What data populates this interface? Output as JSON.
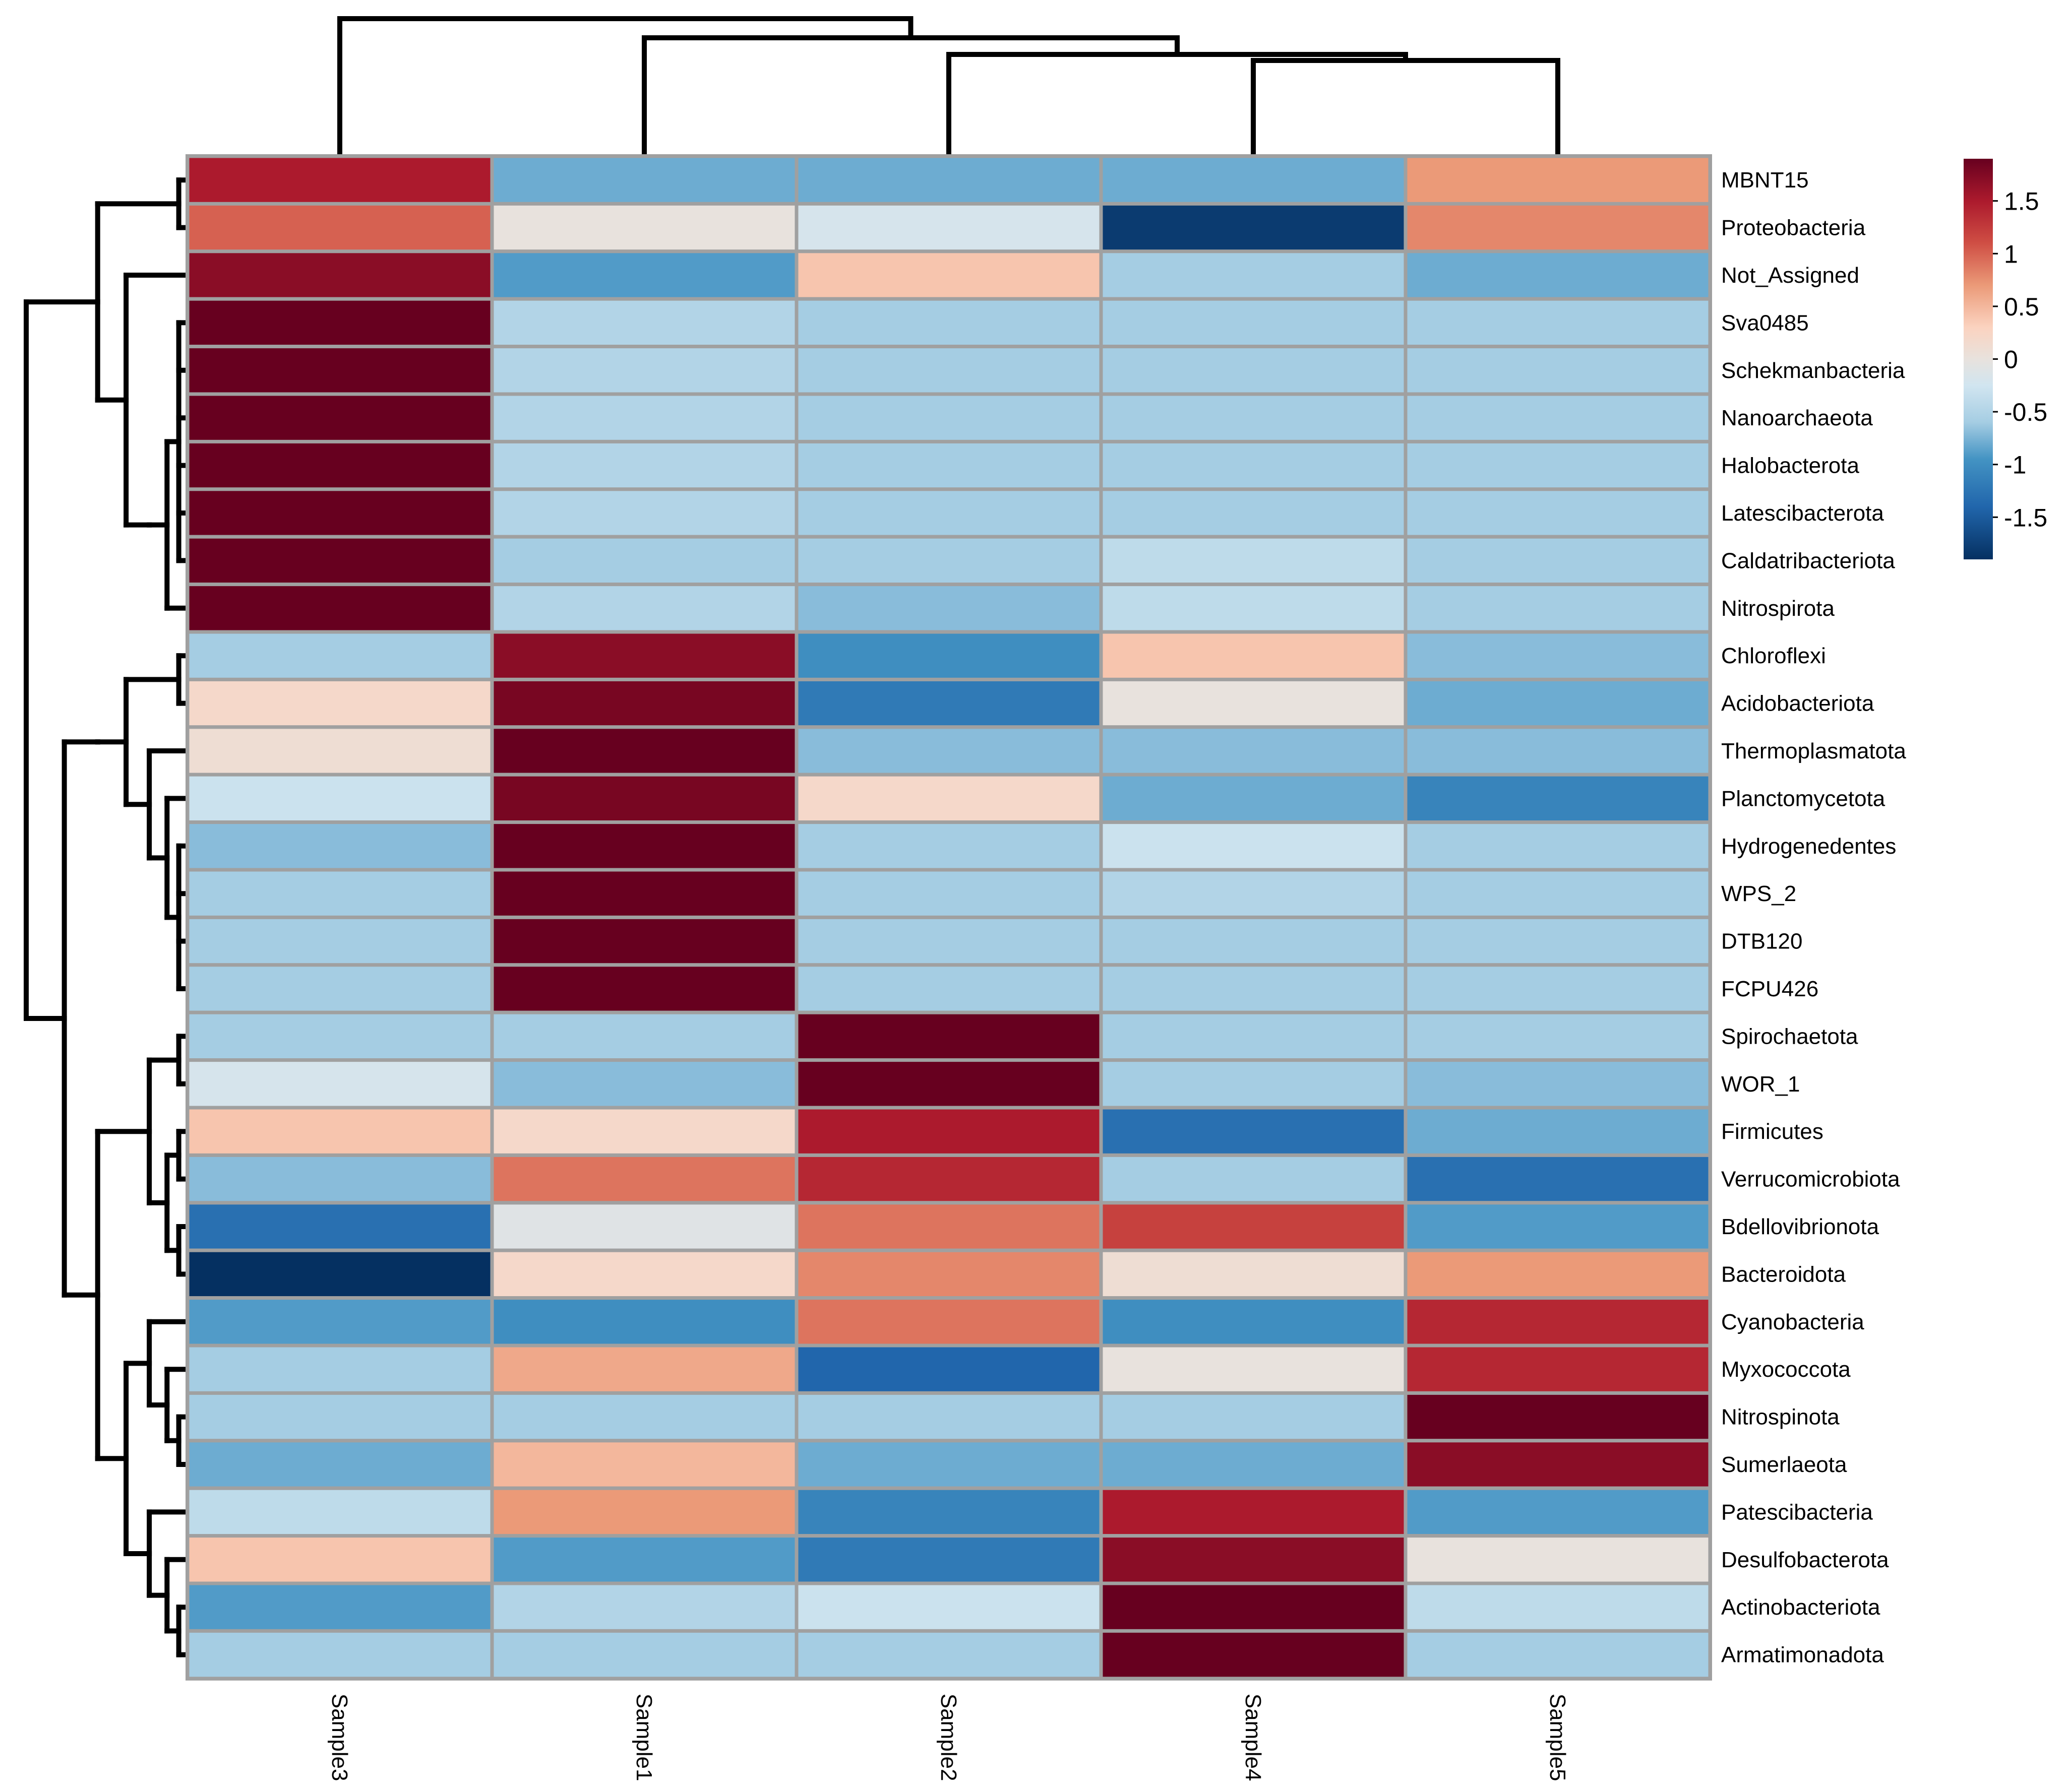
{
  "chart_data": {
    "type": "heatmap",
    "title": "",
    "columns": [
      "Sample3",
      "Sample1",
      "Sample2",
      "Sample4",
      "Sample5"
    ],
    "rows": [
      "MBNT15",
      "Proteobacteria",
      "Not_Assigned",
      "Sva0485",
      "Schekmanbacteria",
      "Nanoarchaeota",
      "Halobacterota",
      "Latescibacterota",
      "Caldatribacteriota",
      "Nitrospirota",
      "Chloroflexi",
      "Acidobacteriota",
      "Thermoplasmatota",
      "Planctomycetota",
      "Hydrogenedentes",
      "WPS_2",
      "DTB120",
      "FCPU426",
      "Spirochaetota",
      "WOR_1",
      "Firmicutes",
      "Verrucomicrobiota",
      "Bdellovibrionota",
      "Bacteroidota",
      "Cyanobacteria",
      "Myxococcota",
      "Nitrospinota",
      "Sumerlaeota",
      "Patescibacteria",
      "Desulfobacterota",
      "Actinobacteriota",
      "Armatimonadota"
    ],
    "values": [
      [
        1.5,
        -0.8,
        -0.8,
        -0.8,
        0.7
      ],
      [
        1.0,
        0.0,
        -0.2,
        -1.8,
        0.8
      ],
      [
        1.7,
        -0.9,
        0.4,
        -0.6,
        -0.8
      ],
      [
        1.9,
        -0.5,
        -0.6,
        -0.6,
        -0.6
      ],
      [
        1.9,
        -0.5,
        -0.6,
        -0.6,
        -0.6
      ],
      [
        1.9,
        -0.5,
        -0.6,
        -0.6,
        -0.6
      ],
      [
        1.9,
        -0.5,
        -0.6,
        -0.6,
        -0.6
      ],
      [
        1.9,
        -0.5,
        -0.6,
        -0.6,
        -0.6
      ],
      [
        1.9,
        -0.6,
        -0.6,
        -0.4,
        -0.6
      ],
      [
        1.9,
        -0.5,
        -0.7,
        -0.4,
        -0.6
      ],
      [
        -0.6,
        1.7,
        -1.0,
        0.4,
        -0.7
      ],
      [
        0.2,
        1.8,
        -1.2,
        0.0,
        -0.8
      ],
      [
        0.1,
        1.9,
        -0.7,
        -0.7,
        -0.7
      ],
      [
        -0.3,
        1.8,
        0.2,
        -0.8,
        -1.1
      ],
      [
        -0.7,
        1.9,
        -0.6,
        -0.3,
        -0.6
      ],
      [
        -0.6,
        1.9,
        -0.6,
        -0.5,
        -0.6
      ],
      [
        -0.6,
        1.9,
        -0.6,
        -0.6,
        -0.6
      ],
      [
        -0.6,
        1.9,
        -0.6,
        -0.6,
        -0.6
      ],
      [
        -0.6,
        -0.6,
        1.9,
        -0.6,
        -0.6
      ],
      [
        -0.2,
        -0.7,
        1.9,
        -0.6,
        -0.7
      ],
      [
        0.4,
        0.2,
        1.5,
        -1.3,
        -0.8
      ],
      [
        -0.7,
        0.9,
        1.4,
        -0.6,
        -1.3
      ],
      [
        -1.3,
        -0.1,
        0.9,
        1.2,
        -0.9
      ],
      [
        -1.9,
        0.2,
        0.8,
        0.1,
        0.7
      ],
      [
        -0.9,
        -1.0,
        0.9,
        -1.0,
        1.4
      ],
      [
        -0.6,
        0.6,
        -1.4,
        0.0,
        1.4
      ],
      [
        -0.6,
        -0.6,
        -0.6,
        -0.6,
        1.9
      ],
      [
        -0.8,
        0.5,
        -0.8,
        -0.8,
        1.7
      ],
      [
        -0.4,
        0.7,
        -1.1,
        1.5,
        -0.9
      ],
      [
        0.4,
        -0.9,
        -1.2,
        1.7,
        0.0
      ],
      [
        -0.9,
        -0.5,
        -0.3,
        1.9,
        -0.4
      ],
      [
        -0.6,
        -0.6,
        -0.6,
        1.9,
        -0.6
      ]
    ],
    "color_scale": {
      "min": -1.9,
      "max": 1.9,
      "stops": [
        {
          "value": -1.9,
          "color": "#053061"
        },
        {
          "value": -1.4,
          "color": "#2166ac"
        },
        {
          "value": -0.95,
          "color": "#4393c3"
        },
        {
          "value": -0.6,
          "color": "#a5cde3"
        },
        {
          "value": -0.25,
          "color": "#d1e5f0"
        },
        {
          "value": 0.0,
          "color": "#e8e2dd"
        },
        {
          "value": 0.3,
          "color": "#fbd3c0"
        },
        {
          "value": 0.7,
          "color": "#eb9a78"
        },
        {
          "value": 1.1,
          "color": "#cf4e44"
        },
        {
          "value": 1.5,
          "color": "#ac1a2d"
        },
        {
          "value": 1.9,
          "color": "#67001f"
        }
      ]
    },
    "legend": {
      "type": "colorbar",
      "placement": "top-right",
      "ticks": [
        1.5,
        1,
        0.5,
        0,
        -0.5,
        -1,
        -1.5
      ],
      "tick_labels": [
        "1.5",
        "1",
        "0.5",
        "0",
        "-0.5",
        "-1",
        "-1.5"
      ]
    },
    "row_dendrogram": true,
    "column_dendrogram": true,
    "cell_border_color": "#a0a0a0"
  }
}
